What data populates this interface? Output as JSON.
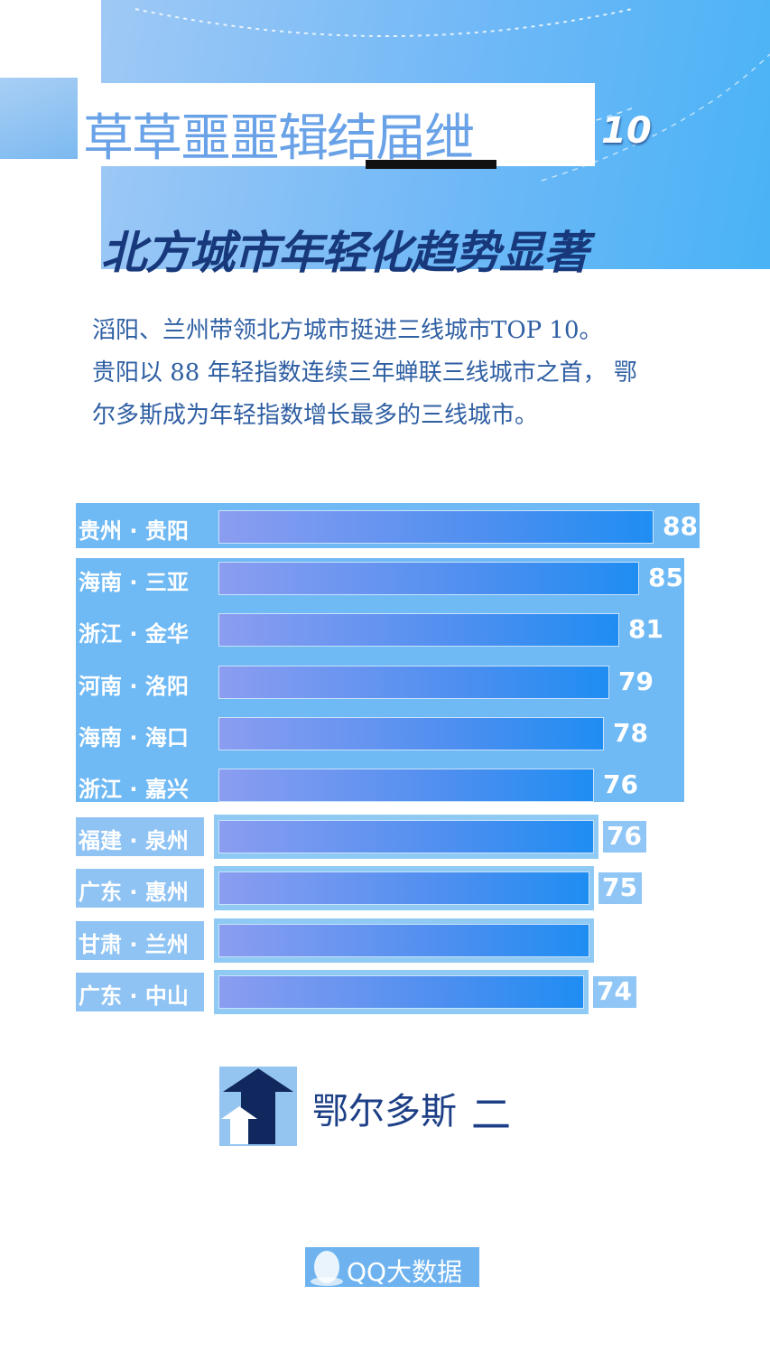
{
  "header": {
    "title_line1": "草草噩噩辑结届绁",
    "title_suffix": "10",
    "title_line2": "北方城市年轻化趋势显著"
  },
  "description": {
    "lines": [
      "滔阳、兰州带领北方城市挺进三线城市TOP 10。",
      "贵阳以 88 年轻指数连续三年蝉联三线城市之首， 鄂",
      "尔多斯成为年轻指数增长最多的三线城市。"
    ]
  },
  "chart_data": {
    "type": "bar",
    "orientation": "horizontal",
    "categories": [
      "贵州 · 贵阳",
      "海南 · 三亚",
      "浙江 · 金华",
      "河南 · 洛阳",
      "海南 · 海口",
      "浙江 · 嘉兴",
      "福建 · 泉州",
      "广东 · 惠州",
      "甘肃 · 兰州",
      "广东 · 中山"
    ],
    "values": [
      88,
      85,
      81,
      79,
      78,
      76,
      76,
      75,
      75,
      74
    ],
    "value_labels": [
      "88",
      "85",
      "81",
      "79",
      "78",
      "76",
      "76",
      "75",
      "",
      "74"
    ],
    "title": "",
    "xlabel": "",
    "ylabel": "",
    "xlim": [
      0,
      88
    ]
  },
  "footer": {
    "arrow_label": "鄂尔多斯",
    "arrow_dash": "二"
  },
  "logo": {
    "text": "QQ大数据"
  },
  "colors": {
    "accent": "#6fb9f4",
    "bar_start": "#8b9df0",
    "bar_end": "#1f8df2",
    "dark_navy": "#17387a"
  }
}
